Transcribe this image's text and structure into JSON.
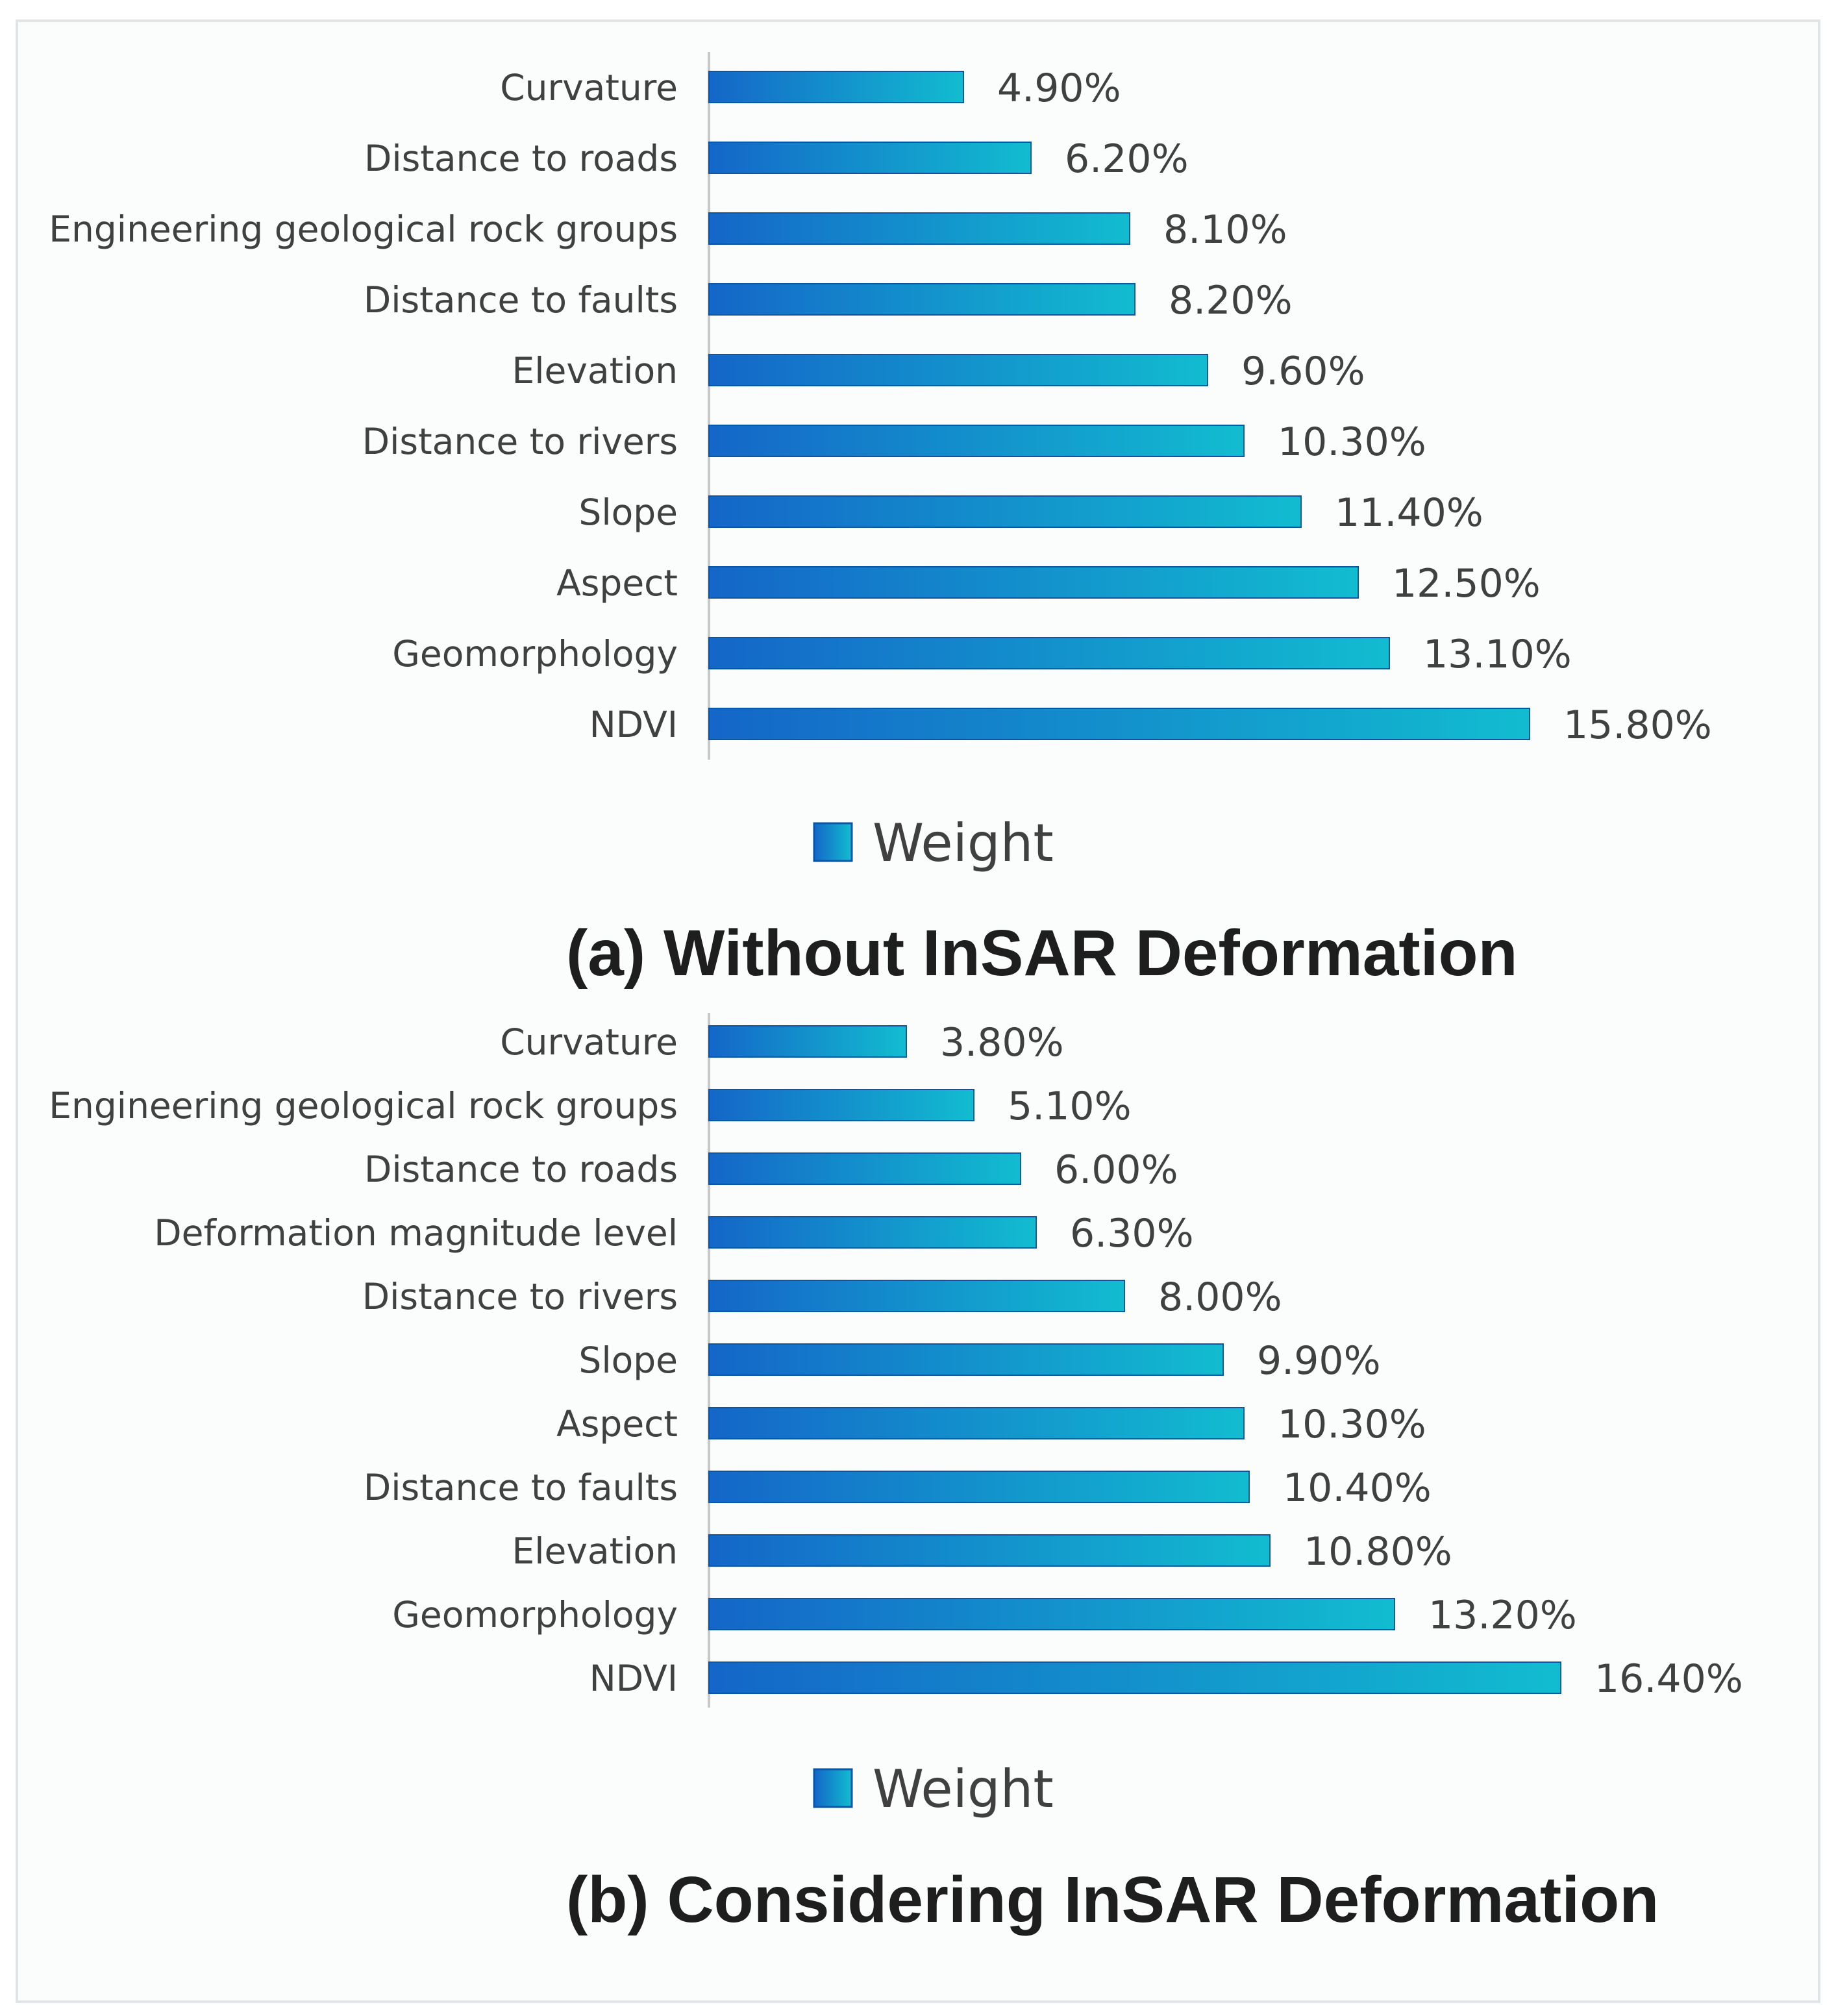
{
  "colors": {
    "bar_dark": "#1466c8",
    "bar_light": "#12bcd0",
    "bar_edge": "#0b57a6",
    "axis": "#c8c8c8",
    "text": "#404040",
    "caption": "#1e1e1e"
  },
  "chart_data": [
    {
      "type": "bar",
      "orientation": "horizontal",
      "caption": "(a) Without InSAR Deformation",
      "legend": "Weight",
      "categories": [
        "Curvature",
        "Distance to roads",
        "Engineering geological rock groups",
        "Distance to faults",
        "Elevation",
        "Distance to rivers",
        "Slope",
        "Aspect",
        "Geomorphology",
        "NDVI"
      ],
      "values": [
        4.9,
        6.2,
        8.1,
        8.2,
        9.6,
        10.3,
        11.4,
        12.5,
        13.1,
        15.8
      ],
      "value_labels": [
        "4.90%",
        "6.20%",
        "8.10%",
        "8.20%",
        "9.60%",
        "10.30%",
        "11.40%",
        "12.50%",
        "13.10%",
        "15.80%"
      ],
      "xlim": [
        0,
        18
      ],
      "unit": "%",
      "grid": false
    },
    {
      "type": "bar",
      "orientation": "horizontal",
      "caption": "(b) Considering  InSAR Deformation",
      "legend": "Weight",
      "categories": [
        "Curvature",
        "Engineering geological rock groups",
        "Distance to roads",
        "Deformation magnitude level",
        "Distance to rivers",
        "Slope",
        "Aspect",
        "Distance to faults",
        "Elevation",
        "Geomorphology",
        "NDVI"
      ],
      "values": [
        3.8,
        5.1,
        6.0,
        6.3,
        8.0,
        9.9,
        10.3,
        10.4,
        10.8,
        13.2,
        16.4
      ],
      "value_labels": [
        "3.80%",
        "5.10%",
        "6.00%",
        "6.30%",
        "8.00%",
        "9.90%",
        "10.30%",
        "10.40%",
        "10.80%",
        "13.20%",
        "16.40%"
      ],
      "xlim": [
        0,
        18
      ],
      "unit": "%",
      "grid": false
    }
  ]
}
